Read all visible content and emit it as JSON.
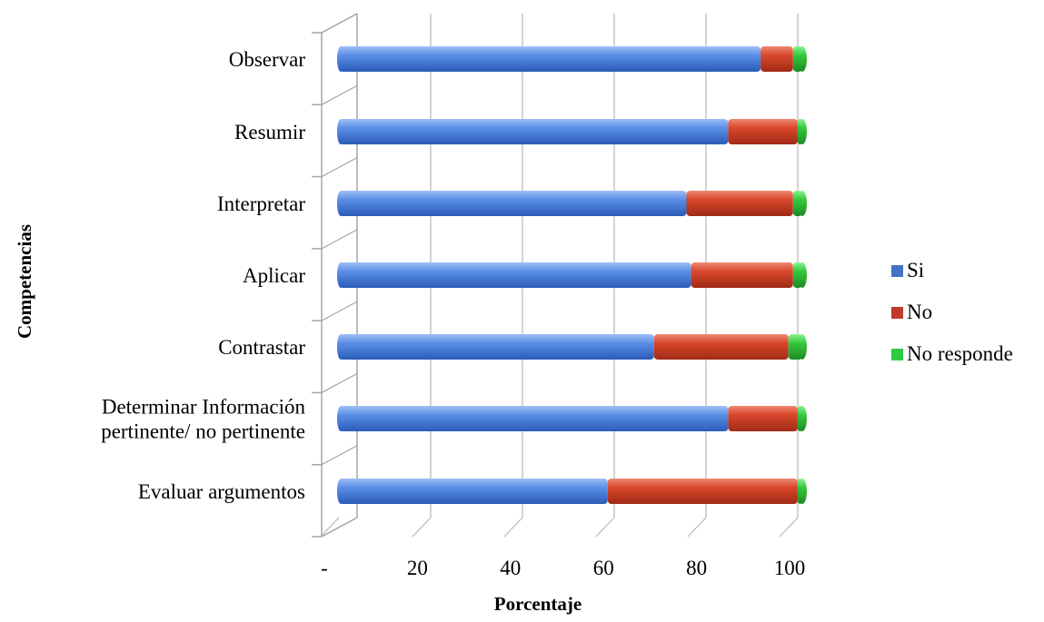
{
  "chart_data": {
    "type": "bar",
    "orientation": "horizontal",
    "stacked": true,
    "three_d": true,
    "categories": [
      "Observar",
      "Resumir",
      "Interpretar",
      "Aplicar",
      "Contrastar",
      [
        "Determinar Información",
        "pertinente/ no pertinente"
      ],
      "Evaluar argumentos"
    ],
    "series": [
      {
        "name": "Si",
        "color": "#4472c4",
        "values": [
          91,
          84,
          75,
          76,
          68,
          84,
          58
        ]
      },
      {
        "name": "No",
        "color": "#c0392b",
        "values": [
          7,
          15,
          23,
          22,
          29,
          15,
          41
        ]
      },
      {
        "name": "No responde",
        "color": "#2ecc40",
        "values": [
          2,
          1,
          2,
          2,
          3,
          1,
          1
        ]
      }
    ],
    "x_ticks": [
      "-",
      "20",
      "40",
      "60",
      "80",
      "100"
    ],
    "xlabel": "Porcentaje",
    "ylabel": "Competencias",
    "xlim": [
      0,
      100
    ],
    "grid": true,
    "legend_position": "right"
  }
}
